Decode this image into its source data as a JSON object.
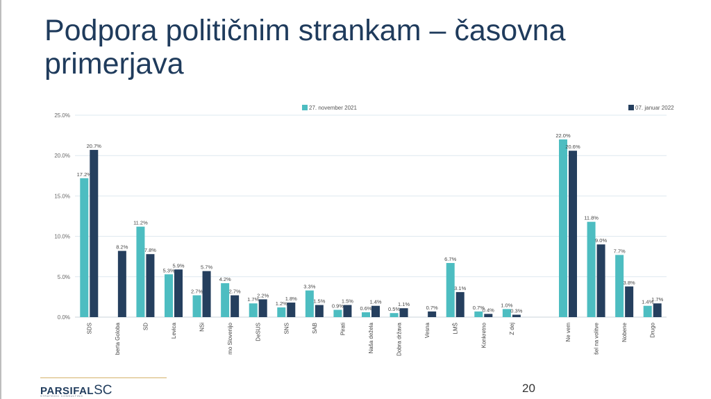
{
  "slide": {
    "title": "Podpora političnim strankam – časovna primerjava",
    "page_number": "20",
    "logo": {
      "main": "PARSIFAL",
      "suffix": "SC",
      "tagline": "STRATEGIC CONSULTING"
    }
  },
  "colors": {
    "series1": "#4dbdc1",
    "series2": "#253f5e",
    "grid": "#dde8ef",
    "title": "#1f3b5c"
  },
  "chart_data": {
    "type": "bar",
    "categories": [
      "SDS",
      "berta Goloba",
      "SD",
      "Levica",
      "NSi",
      "mo Slovenijo",
      "DeSUS",
      "SNS",
      "SAB",
      "Pirati",
      "Naša dežela",
      "Dobra država",
      "Vesna",
      "LMŠ",
      "Konkretno",
      "Z dej",
      "",
      "Ne vem",
      "šel na volitve",
      "Nobene",
      "Drugo"
    ],
    "series": [
      {
        "name": "27. november 2021",
        "values": [
          17.2,
          null,
          11.2,
          5.3,
          2.7,
          4.2,
          1.7,
          1.2,
          3.3,
          0.9,
          0.6,
          0.5,
          null,
          6.7,
          0.7,
          1.0,
          null,
          22.0,
          11.8,
          7.7,
          1.4
        ]
      },
      {
        "name": "07. januar 2022",
        "values": [
          20.7,
          8.2,
          7.8,
          5.9,
          5.7,
          2.7,
          2.2,
          1.8,
          1.5,
          1.5,
          1.4,
          1.1,
          0.7,
          3.1,
          0.4,
          0.3,
          null,
          20.6,
          9.0,
          3.8,
          1.7
        ]
      }
    ],
    "yticks": [
      "0.0%",
      "5.0%",
      "10.0%",
      "15.0%",
      "20.0%",
      "25.0%"
    ],
    "ylim": [
      0,
      25
    ],
    "grid": true,
    "legend": "top",
    "value_labels": [
      [
        "17.2%",
        null,
        "11.2%",
        "5.3%",
        "2.7%",
        "4.2%",
        "1.7%",
        "1.2%",
        "3.3%",
        "0.9%",
        "0.6%",
        "0.5%",
        null,
        "6.7%",
        "0.7%",
        "1.0%",
        null,
        "22.0%",
        "11.8%",
        "7.7%",
        "1.4%"
      ],
      [
        "20.7%",
        "8.2%",
        "7.8%",
        "5.9%",
        "5.7%",
        "2.7%",
        "2.2%",
        "1.8%",
        "1.5%",
        "1.5%",
        "1.4%",
        "1.1%",
        "0.7%",
        "3.1%",
        "0.4%",
        "0.3%",
        null,
        "20.6%",
        "9.0%",
        "3.8%",
        "1.7%"
      ]
    ]
  }
}
